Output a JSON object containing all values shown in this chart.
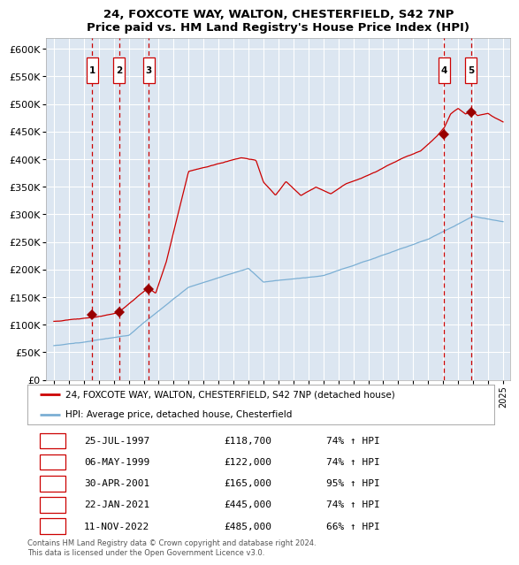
{
  "title": "24, FOXCOTE WAY, WALTON, CHESTERFIELD, S42 7NP",
  "subtitle": "Price paid vs. HM Land Registry's House Price Index (HPI)",
  "ylim": [
    0,
    620000
  ],
  "yticks": [
    0,
    50000,
    100000,
    150000,
    200000,
    250000,
    300000,
    350000,
    400000,
    450000,
    500000,
    550000,
    600000
  ],
  "xlim_start": 1994.5,
  "xlim_end": 2025.5,
  "plot_bg_color": "#dce6f1",
  "grid_color": "#ffffff",
  "sale_dates_decimal": [
    1997.56,
    1999.35,
    2001.33,
    2021.06,
    2022.86
  ],
  "sale_prices": [
    118700,
    122000,
    165000,
    445000,
    485000
  ],
  "sale_labels": [
    "1",
    "2",
    "3",
    "4",
    "5"
  ],
  "sale_date_strings": [
    "25-JUL-1997",
    "06-MAY-1999",
    "30-APR-2001",
    "22-JAN-2021",
    "11-NOV-2022"
  ],
  "sale_price_strings": [
    "£118,700",
    "£122,000",
    "£165,000",
    "£445,000",
    "£485,000"
  ],
  "sale_pct_strings": [
    "74% ↑ HPI",
    "74% ↑ HPI",
    "95% ↑ HPI",
    "74% ↑ HPI",
    "66% ↑ HPI"
  ],
  "hpi_line_color": "#7bafd4",
  "price_line_color": "#cc0000",
  "sale_marker_color": "#990000",
  "dashed_line_color": "#cc0000",
  "footer_text": "Contains HM Land Registry data © Crown copyright and database right 2024.\nThis data is licensed under the Open Government Licence v3.0.",
  "legend1_label": "24, FOXCOTE WAY, WALTON, CHESTERFIELD, S42 7NP (detached house)",
  "legend2_label": "HPI: Average price, detached house, Chesterfield"
}
